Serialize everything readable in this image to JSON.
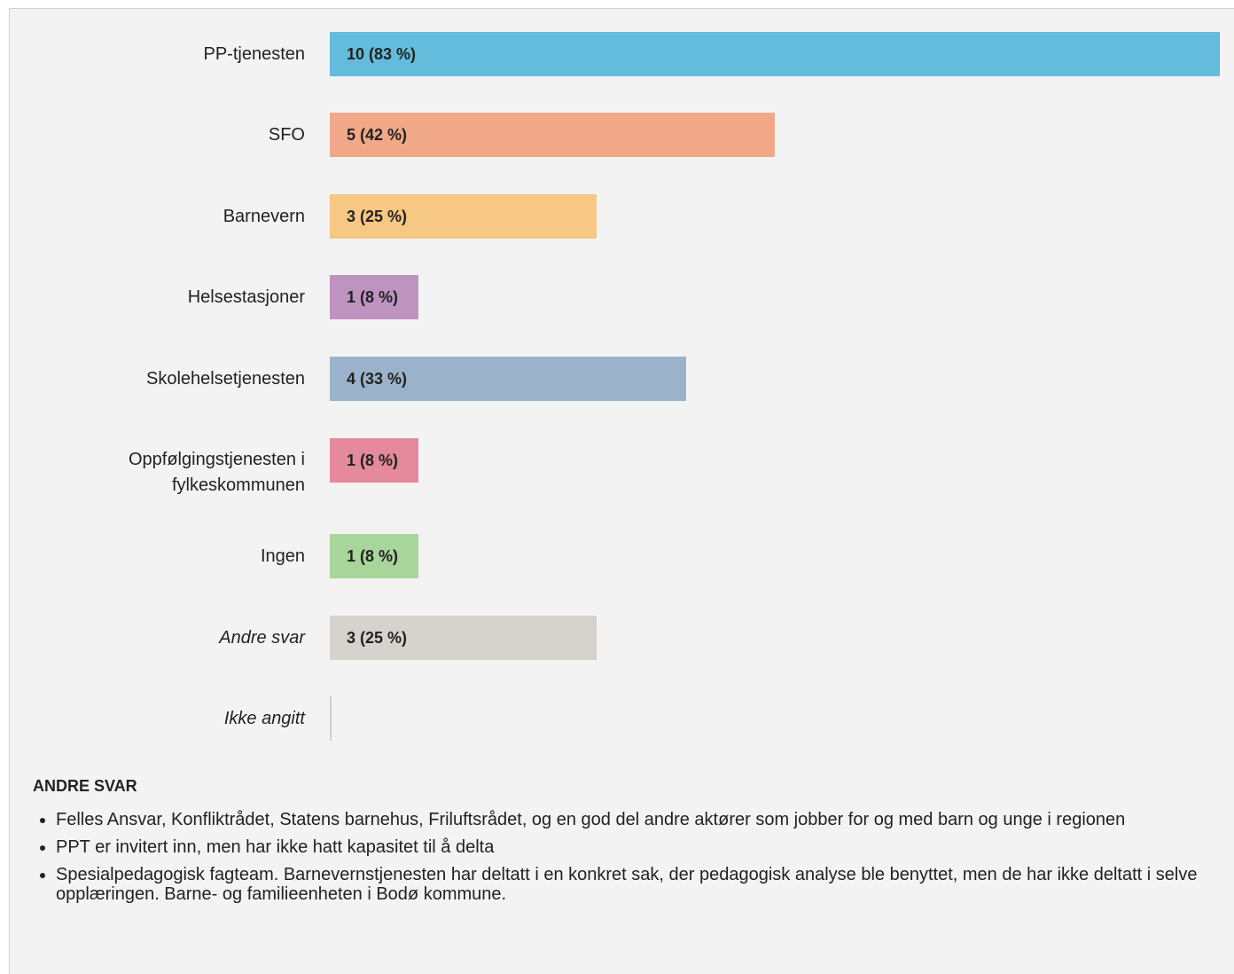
{
  "chart_data": {
    "type": "bar",
    "orientation": "horizontal",
    "categories": [
      "PP-tjenesten",
      "SFO",
      "Barnevern",
      "Helsestasjoner",
      "Skolehelsetjenesten",
      "Oppfølgingstjenesten i fylkeskommunen",
      "Ingen",
      "Andre svar",
      "Ikke angitt"
    ],
    "values": [
      10,
      5,
      3,
      1,
      4,
      1,
      1,
      3,
      0
    ],
    "value_labels": [
      "10 (83 %)",
      "5 (42 %)",
      "3 (25 %)",
      "1 (8 %)",
      "4 (33 %)",
      "1 (8 %)",
      "1 (8 %)",
      "3 (25 %)",
      null
    ],
    "colors": [
      "#63bcdb",
      "#f0a889",
      "#f6c884",
      "#be93c0",
      "#9ab3ca",
      "#e48a9c",
      "#a8d59a",
      "#d6d2cd",
      "#d6d2cd"
    ]
  },
  "other_answers": {
    "title": "ANDRE SVAR",
    "items": [
      "Felles Ansvar, Konfliktrådet, Statens barnehus, Friluftsrådet, og en god del andre aktører som jobber for og med barn og unge i regionen",
      "PPT er invitert inn, men har ikke hatt kapasitet til å delta",
      "Spesialpedagogisk fagteam. Barnevernstjenesten har deltatt i en konkret sak, der pedagogisk analyse ble benyttet, men de har ikke deltatt i selve opplæringen. Barne- og familieenheten i Bodø kommune."
    ]
  }
}
